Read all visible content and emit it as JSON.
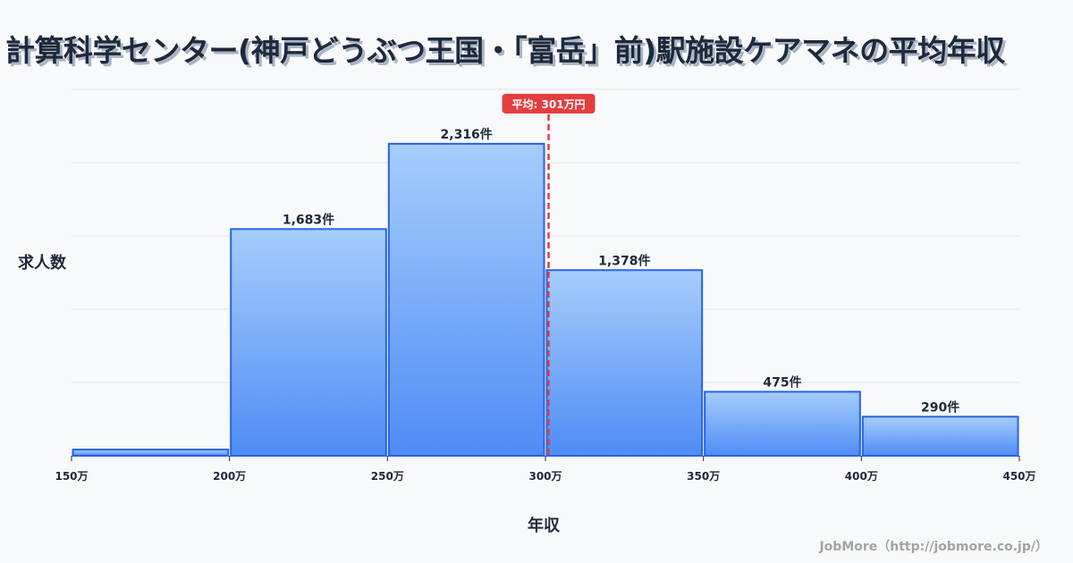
{
  "title": "計算科学センター(神戸どうぶつ王国・「富岳」前)駅施設ケアマネの平均年収",
  "axis": {
    "y_label": "求人数",
    "x_label": "年収"
  },
  "average": {
    "label": "平均: 301万円",
    "value": 301,
    "color": "#e53e3e"
  },
  "footer": "JobMore（http://jobmore.co.jp/）",
  "colors": {
    "bar_top": "#a7cdfc",
    "bar_bottom": "#4f8cf5",
    "bar_border": "#2563eb",
    "grid": "#e2e5ec",
    "background": "#f8f9fb"
  },
  "chart_data": {
    "type": "bar",
    "title": "計算科学センター(神戸どうぶつ王国・「富岳」前)駅施設ケアマネの平均年収",
    "xlabel": "年収",
    "ylabel": "求人数",
    "x_ticks": [
      "150万",
      "200万",
      "250万",
      "300万",
      "350万",
      "400万",
      "450万"
    ],
    "categories": [
      "150万-200万",
      "200万-250万",
      "250万-300万",
      "300万-350万",
      "350万-400万",
      "400万-450万"
    ],
    "values": [
      46,
      1683,
      2316,
      1378,
      475,
      290
    ],
    "value_labels": [
      "",
      "1,683件",
      "2,316件",
      "1,378件",
      "475件",
      "290件"
    ],
    "mean_line": {
      "x": 301,
      "label": "平均: 301万円"
    },
    "xlim": [
      150,
      450
    ],
    "ylim": [
      0,
      2720
    ],
    "grid": "horizontal",
    "legend": "none"
  }
}
